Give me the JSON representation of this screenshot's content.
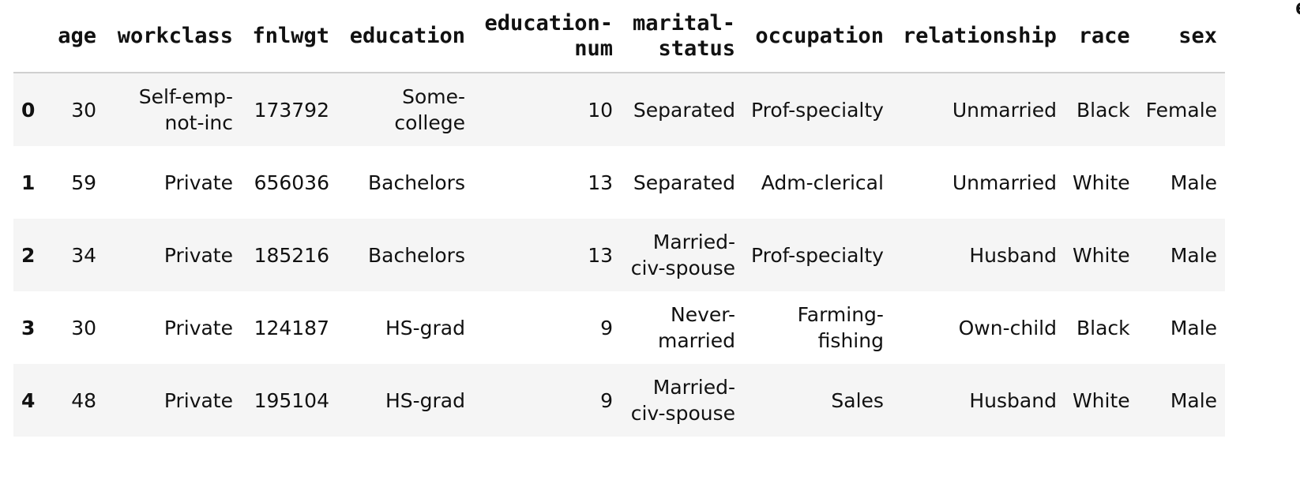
{
  "table": {
    "columns": [
      {
        "key": "age",
        "label": "age"
      },
      {
        "key": "workclass",
        "label": "workclass"
      },
      {
        "key": "fnlwgt",
        "label": "fnlwgt"
      },
      {
        "key": "education",
        "label": "education"
      },
      {
        "key": "education_num",
        "label": "education-num"
      },
      {
        "key": "marital_status",
        "label": "marital-status"
      },
      {
        "key": "occupation",
        "label": "occupation"
      },
      {
        "key": "relationship",
        "label": "relationship"
      },
      {
        "key": "race",
        "label": "race"
      },
      {
        "key": "sex",
        "label": "sex"
      }
    ],
    "columns_display": {
      "education_num": [
        "education-",
        "num"
      ],
      "marital_status": [
        "marital-",
        "status"
      ]
    },
    "rows": [
      {
        "index": "0",
        "cells": {
          "age": "30",
          "workclass": "Self-emp-not-inc",
          "fnlwgt": "173792",
          "education": "Some-college",
          "education_num": "10",
          "marital_status": "Separated",
          "occupation": "Prof-specialty",
          "relationship": "Unmarried",
          "race": "Black",
          "sex": "Female"
        }
      },
      {
        "index": "1",
        "cells": {
          "age": "59",
          "workclass": "Private",
          "fnlwgt": "656036",
          "education": "Bachelors",
          "education_num": "13",
          "marital_status": "Separated",
          "occupation": "Adm-clerical",
          "relationship": "Unmarried",
          "race": "White",
          "sex": "Male"
        }
      },
      {
        "index": "2",
        "cells": {
          "age": "34",
          "workclass": "Private",
          "fnlwgt": "185216",
          "education": "Bachelors",
          "education_num": "13",
          "marital_status": "Married-civ-spouse",
          "occupation": "Prof-specialty",
          "relationship": "Husband",
          "race": "White",
          "sex": "Male"
        }
      },
      {
        "index": "3",
        "cells": {
          "age": "30",
          "workclass": "Private",
          "fnlwgt": "124187",
          "education": "HS-grad",
          "education_num": "9",
          "marital_status": "Never-married",
          "occupation": "Farming-fishing",
          "relationship": "Own-child",
          "race": "Black",
          "sex": "Male"
        }
      },
      {
        "index": "4",
        "cells": {
          "age": "48",
          "workclass": "Private",
          "fnlwgt": "195104",
          "education": "HS-grad",
          "education_num": "9",
          "marital_status": "Married-civ-spouse",
          "occupation": "Sales",
          "relationship": "Husband",
          "race": "White",
          "sex": "Male"
        }
      }
    ],
    "cell_display": {
      "0.workclass": [
        "Self-emp-",
        "not-inc"
      ],
      "0.education": [
        "Some-",
        "college"
      ],
      "2.marital_status": [
        "Married-",
        "civ-spouse"
      ],
      "3.marital_status": [
        "Never-",
        "married"
      ],
      "3.occupation": [
        "Farming-",
        "fishing"
      ],
      "4.marital_status": [
        "Married-",
        "civ-spouse"
      ]
    },
    "cut_off_next_header": "e"
  }
}
